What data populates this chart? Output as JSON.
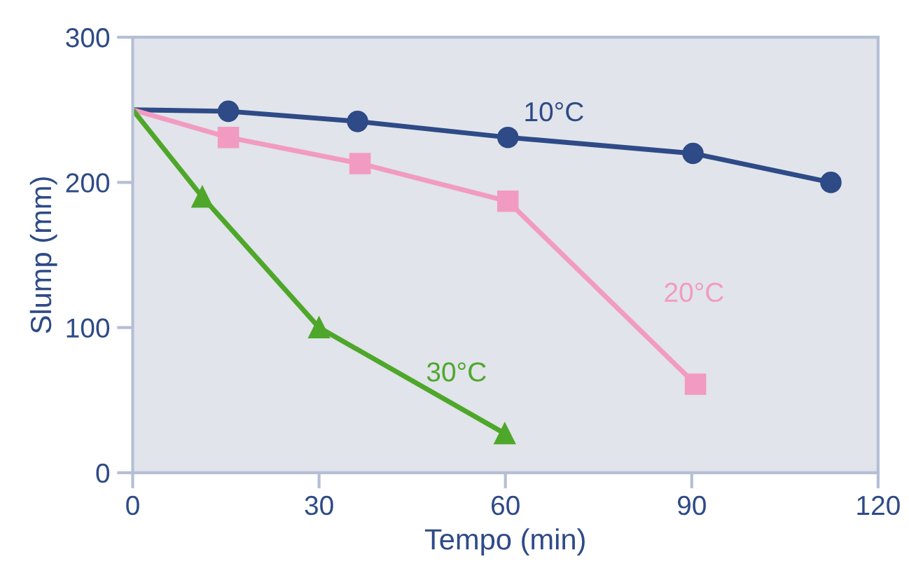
{
  "chart_data": {
    "type": "line",
    "xlabel": "Tempo (min)",
    "ylabel": "Slump (mm)",
    "xlim": [
      0,
      120
    ],
    "xticks": [
      0,
      30,
      60,
      90,
      120
    ],
    "ylim": [
      0,
      300
    ],
    "yticks": [
      0,
      100,
      200,
      300
    ],
    "grid": false,
    "legend": false,
    "series": [
      {
        "name": "10°C",
        "color": "#2e4a87",
        "marker": "circle",
        "x": [
          0,
          15.4,
          36.2,
          60.4,
          90.2,
          112.4
        ],
        "values": [
          250,
          249,
          242,
          231,
          220,
          200
        ]
      },
      {
        "name": "20°C",
        "color": "#f29bc2",
        "marker": "square",
        "x": [
          0,
          15.4,
          36.6,
          60.4,
          90.6
        ],
        "values": [
          250,
          231,
          213,
          187,
          61
        ]
      },
      {
        "name": "30°C",
        "color": "#4ea72a",
        "marker": "triangle",
        "x": [
          0,
          11.2,
          30,
          59.9
        ],
        "values": [
          250,
          190,
          100,
          27
        ]
      }
    ]
  }
}
